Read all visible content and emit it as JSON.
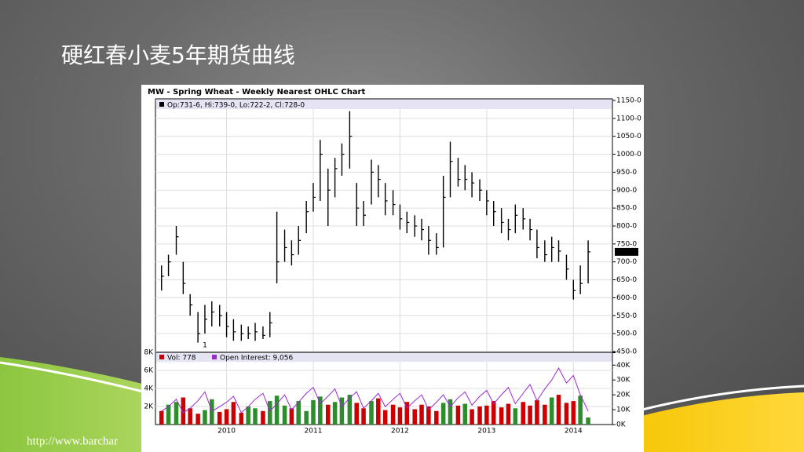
{
  "slide_title": "硬红春小麦5年期货曲线",
  "source_url": "http://www.barchar",
  "chart_title": "MW - Spring Wheat - Weekly Nearest OHLC Chart",
  "chart_data": [
    {
      "type": "ohlc",
      "legend": "Op:731-6, Hi:739-0, Lo:722-2, Cl:728-0",
      "last_label": "728-0",
      "color": "#000000",
      "x": [
        2009.25,
        2009.33,
        2009.42,
        2009.5,
        2009.58,
        2009.67,
        2009.75,
        2009.83,
        2009.92,
        2010.0,
        2010.08,
        2010.17,
        2010.25,
        2010.33,
        2010.42,
        2010.5,
        2010.58,
        2010.67,
        2010.75,
        2010.83,
        2010.92,
        2011.0,
        2011.08,
        2011.17,
        2011.25,
        2011.33,
        2011.42,
        2011.5,
        2011.58,
        2011.67,
        2011.75,
        2011.83,
        2011.92,
        2012.0,
        2012.08,
        2012.17,
        2012.25,
        2012.33,
        2012.42,
        2012.5,
        2012.58,
        2012.67,
        2012.75,
        2012.83,
        2012.92,
        2013.0,
        2013.08,
        2013.17,
        2013.25,
        2013.33,
        2013.42,
        2013.5,
        2013.58,
        2013.67,
        2013.75,
        2013.83,
        2013.92,
        2014.0,
        2014.08,
        2014.17
      ],
      "high": [
        690,
        720,
        800,
        700,
        610,
        560,
        580,
        590,
        580,
        560,
        540,
        525,
        520,
        530,
        520,
        560,
        840,
        790,
        760,
        800,
        870,
        920,
        1040,
        960,
        990,
        1030,
        1120,
        920,
        870,
        985,
        970,
        920,
        900,
        860,
        840,
        830,
        820,
        800,
        780,
        940,
        1035,
        990,
        970,
        950,
        930,
        900,
        870,
        850,
        820,
        860,
        850,
        820,
        790,
        760,
        770,
        760,
        720,
        650,
        690,
        760
      ],
      "low": [
        620,
        660,
        720,
        610,
        550,
        475,
        500,
        520,
        520,
        490,
        480,
        480,
        485,
        480,
        485,
        490,
        640,
        700,
        690,
        720,
        780,
        840,
        870,
        800,
        880,
        940,
        960,
        800,
        800,
        860,
        880,
        830,
        830,
        790,
        780,
        770,
        760,
        720,
        720,
        740,
        880,
        910,
        900,
        880,
        870,
        830,
        800,
        780,
        760,
        780,
        790,
        760,
        710,
        700,
        700,
        700,
        650,
        595,
        610,
        640
      ],
      "close": [
        660,
        700,
        770,
        640,
        580,
        500,
        540,
        560,
        550,
        520,
        505,
        500,
        500,
        505,
        495,
        530,
        700,
        740,
        720,
        760,
        840,
        880,
        1000,
        900,
        960,
        1000,
        1050,
        850,
        830,
        950,
        930,
        870,
        860,
        820,
        810,
        800,
        790,
        760,
        740,
        880,
        980,
        930,
        930,
        920,
        900,
        870,
        840,
        810,
        790,
        830,
        820,
        790,
        740,
        720,
        740,
        730,
        680,
        620,
        640,
        728
      ],
      "xlim": [
        2009.18,
        2014.45
      ],
      "xticks": [
        2010,
        2011,
        2012,
        2013,
        2014
      ],
      "ylim": [
        450,
        1150
      ],
      "yticks": [
        {
          "value": 450,
          "label": "450-0"
        },
        {
          "value": 500,
          "label": "500-0"
        },
        {
          "value": 550,
          "label": "550-0"
        },
        {
          "value": 600,
          "label": "600-0"
        },
        {
          "value": 650,
          "label": "650-0"
        },
        {
          "value": 700,
          "label": "700-0"
        },
        {
          "value": 750,
          "label": "750-0"
        },
        {
          "value": 800,
          "label": "800-0"
        },
        {
          "value": 850,
          "label": "850-0"
        },
        {
          "value": 900,
          "label": "900-0"
        },
        {
          "value": 950,
          "label": "950-0"
        },
        {
          "value": 1000,
          "label": "1000-0"
        },
        {
          "value": 1050,
          "label": "1050-0"
        },
        {
          "value": 1100,
          "label": "1100-0"
        },
        {
          "value": 1150,
          "label": "1150-0"
        }
      ],
      "grid": true,
      "annotations": [
        {
          "text": "1",
          "x": 2009.75,
          "y": 468
        }
      ]
    },
    {
      "type": "bar",
      "xlim": [
        2009.18,
        2014.45
      ],
      "xticks": [
        2010,
        2011,
        2012,
        2013,
        2014
      ],
      "ylim": [
        0,
        8000
      ],
      "yticks": [
        {
          "value": 2000,
          "label": "2K"
        },
        {
          "value": 4000,
          "label": "4K"
        },
        {
          "value": 6000,
          "label": "6K"
        },
        {
          "value": 8000,
          "label": "8K"
        }
      ],
      "y2lim": [
        0,
        48600
      ],
      "y2ticks": [
        {
          "value": 0,
          "label": "0K"
        },
        {
          "value": 10000,
          "label": "10K"
        },
        {
          "value": 20000,
          "label": "20K"
        },
        {
          "value": 30000,
          "label": "30K"
        },
        {
          "value": 40000,
          "label": "40K"
        }
      ],
      "grid": true,
      "series": [
        {
          "name": "Vol: 778",
          "color": "#cc0000",
          "up_color": "#2e8b2e",
          "values": [
            1500,
            2200,
            2500,
            3000,
            1800,
            1200,
            1600,
            2800,
            1400,
            1700,
            2500,
            1300,
            2000,
            1800,
            1500,
            2600,
            3200,
            2100,
            1800,
            2600,
            1500,
            2700,
            3100,
            2200,
            2500,
            3000,
            3300,
            2400,
            1800,
            2600,
            2900,
            1600,
            2200,
            1900,
            2500,
            1700,
            2200,
            2000,
            1500,
            2400,
            2800,
            2100,
            2300,
            1700,
            2000,
            2100,
            2600,
            1900,
            2300,
            1800,
            2500,
            2100,
            2700,
            2200,
            3000,
            3300,
            2400,
            2600,
            3200,
            778
          ]
        },
        {
          "name": "Open Interest: 9,056",
          "color": "#9a2ad0",
          "axis": "y2",
          "values": [
            9000,
            12000,
            17000,
            8000,
            11000,
            16000,
            22000,
            9000,
            12000,
            15000,
            19000,
            8000,
            12000,
            17000,
            21000,
            9000,
            14000,
            20000,
            10000,
            15000,
            21000,
            25000,
            14000,
            19000,
            24000,
            12000,
            18000,
            22000,
            11000,
            16000,
            21000,
            12000,
            17000,
            21000,
            11000,
            16000,
            20000,
            10000,
            15000,
            20000,
            12000,
            18000,
            22000,
            13000,
            19000,
            23000,
            14000,
            20000,
            25000,
            14000,
            21000,
            27000,
            16000,
            24000,
            30000,
            38000,
            28000,
            33000,
            20000,
            9056
          ]
        }
      ]
    }
  ]
}
